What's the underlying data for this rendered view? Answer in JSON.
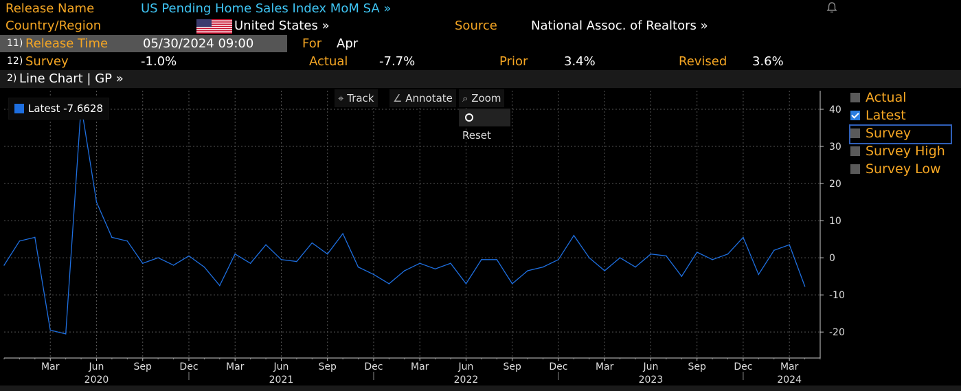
{
  "header": {
    "release_name_label": "Release Name",
    "release_name": "US Pending Home Sales Index MoM SA »",
    "country_label": "Country/Region",
    "country": "United States »",
    "source_label": "Source",
    "source": "National Assoc. of Realtors »",
    "release_time_key": "11)",
    "release_time_label": "Release Time",
    "release_time": "05/30/2024 09:00",
    "for_label": "For",
    "for_value": "Apr",
    "survey_key": "12)",
    "survey_label": "Survey",
    "survey_value": "-1.0%",
    "actual_label": "Actual",
    "actual_value": "-7.7%",
    "prior_label": "Prior",
    "prior_value": "3.4%",
    "revised_label": "Revised",
    "revised_value": "3.6%",
    "chart_menu_key": "2)",
    "chart_menu": "Line Chart | GP »"
  },
  "toolbar": {
    "track": "Track",
    "annotate": "Annotate",
    "zoom": "Zoom",
    "reset": "Reset"
  },
  "legend": {
    "latest_label": "Latest -7.6628"
  },
  "series_legend": [
    {
      "label": "Actual",
      "checked": false
    },
    {
      "label": "Latest",
      "checked": true
    },
    {
      "label": "Survey",
      "checked": false
    },
    {
      "label": "Survey High",
      "checked": false
    },
    {
      "label": "Survey Low",
      "checked": false
    }
  ],
  "colors": {
    "accent": "#f5a623",
    "link": "#3fc6f5",
    "line": "#1e6fe0",
    "background": "#000000"
  },
  "chart_data": {
    "type": "line",
    "series": [
      {
        "name": "Latest",
        "x": [
          "2019-12",
          "2020-01",
          "2020-02",
          "2020-03",
          "2020-04",
          "2020-05",
          "2020-06",
          "2020-07",
          "2020-08",
          "2020-09",
          "2020-10",
          "2020-11",
          "2020-12",
          "2021-01",
          "2021-02",
          "2021-03",
          "2021-04",
          "2021-05",
          "2021-06",
          "2021-07",
          "2021-08",
          "2021-09",
          "2021-10",
          "2021-11",
          "2021-12",
          "2022-01",
          "2022-02",
          "2022-03",
          "2022-04",
          "2022-05",
          "2022-06",
          "2022-07",
          "2022-08",
          "2022-09",
          "2022-10",
          "2022-11",
          "2022-12",
          "2023-01",
          "2023-02",
          "2023-03",
          "2023-04",
          "2023-05",
          "2023-06",
          "2023-07",
          "2023-08",
          "2023-09",
          "2023-10",
          "2023-11",
          "2023-12",
          "2024-01",
          "2024-02",
          "2024-03",
          "2024-04"
        ],
        "values": [
          -2.0,
          4.5,
          5.5,
          -19.5,
          -20.5,
          41.0,
          15.0,
          5.5,
          4.5,
          -1.5,
          0.0,
          -2.0,
          0.5,
          -2.5,
          -7.5,
          1.0,
          -1.5,
          3.5,
          -0.5,
          -1.0,
          4.0,
          1.0,
          6.5,
          -2.5,
          -4.5,
          -7.0,
          -3.5,
          -1.5,
          -3.0,
          -1.5,
          -7.0,
          -0.5,
          -0.5,
          -7.0,
          -3.5,
          -2.5,
          -0.5,
          6.0,
          0.0,
          -3.5,
          0.0,
          -2.5,
          1.0,
          0.5,
          -5.0,
          1.5,
          -0.5,
          1.0,
          5.5,
          -4.5,
          2.0,
          3.5,
          -7.66
        ]
      }
    ],
    "x_tick_labels": [
      "Mar",
      "Jun",
      "Sep",
      "Dec",
      "Mar",
      "Jun",
      "Sep",
      "Dec",
      "Mar",
      "Jun",
      "Sep",
      "Dec",
      "Mar",
      "Jun",
      "Sep",
      "Dec",
      "Mar"
    ],
    "x_tick_dates": [
      "2020-03",
      "2020-06",
      "2020-09",
      "2020-12",
      "2021-03",
      "2021-06",
      "2021-09",
      "2021-12",
      "2022-03",
      "2022-06",
      "2022-09",
      "2022-12",
      "2023-03",
      "2023-06",
      "2023-09",
      "2023-12",
      "2024-03"
    ],
    "year_labels": [
      "2020",
      "2021",
      "2022",
      "2023",
      "2024"
    ],
    "year_label_dates": [
      "2020-06",
      "2021-06",
      "2022-06",
      "2023-06",
      "2024-03"
    ],
    "year_divider_dates": [
      "2020-12",
      "2021-12",
      "2022-12",
      "2023-12"
    ],
    "y_ticks": [
      40,
      30,
      20,
      10,
      0,
      -10,
      -20
    ],
    "ylim": [
      -27,
      45
    ],
    "xlim": [
      "2019-12",
      "2024-05"
    ],
    "y_axis_side": "right",
    "grid": true,
    "legend_position": "top-left"
  }
}
